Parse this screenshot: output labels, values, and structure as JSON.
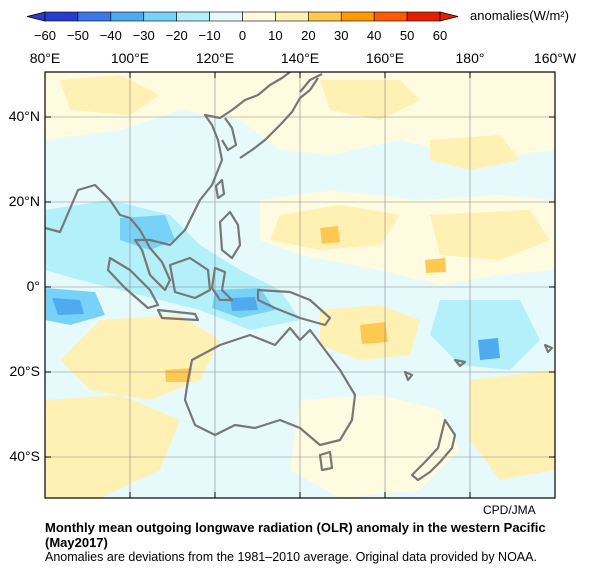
{
  "colorbar": {
    "ticks": [
      "−60",
      "−50",
      "−40",
      "−30",
      "−20",
      "−10",
      "0",
      "10",
      "20",
      "30",
      "40",
      "50",
      "60"
    ],
    "units": "anomalies(W/m²)",
    "colors": [
      "#2a3ccc",
      "#3c78e6",
      "#50aaf0",
      "#78d2f8",
      "#b4f0fa",
      "#e6fafc",
      "#fffbe0",
      "#fff0b4",
      "#ffc850",
      "#ff9a00",
      "#ff5a00",
      "#e61e00"
    ]
  },
  "axes": {
    "lon_labels": [
      "80°E",
      "100°E",
      "120°E",
      "140°E",
      "160°E",
      "180°",
      "160°W"
    ],
    "lat_labels": [
      "40°N",
      "20°N",
      "0°",
      "20°S",
      "40°S"
    ]
  },
  "credit": "CPD/JMA",
  "title_line1": "Monthly mean outgoing longwave radiation (OLR) anomaly in the western Pacific",
  "title_line2": "(May2017)",
  "subtitle": "Anomalies are deviations from the 1981–2010 average. Original data provided by NOAA."
}
